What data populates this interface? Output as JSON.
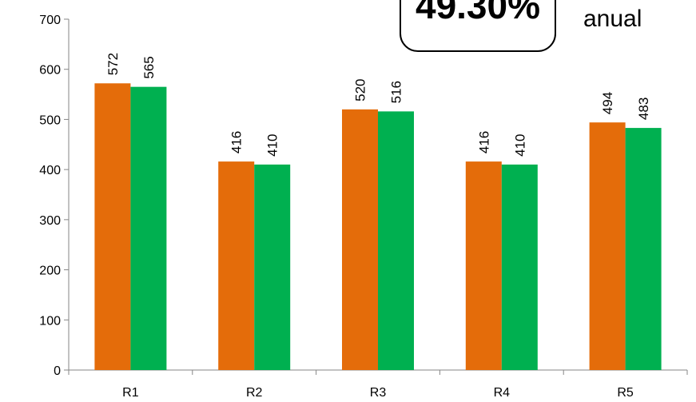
{
  "chart_data": {
    "type": "bar",
    "categories": [
      "R1",
      "R2",
      "R3",
      "R4",
      "R5"
    ],
    "series": [
      {
        "values": [
          572,
          416,
          520,
          416,
          494
        ],
        "color": "#E46C0A"
      },
      {
        "values": [
          565,
          410,
          516,
          410,
          483
        ],
        "color": "#00B050"
      }
    ],
    "ylim": [
      0,
      700
    ],
    "yticks": [
      0,
      100,
      200,
      300,
      400,
      500,
      600,
      700
    ],
    "data_labels": true,
    "grid": false,
    "legend": "none"
  },
  "annotation": {
    "badge_text": "49.30%",
    "side_text": "anual"
  }
}
